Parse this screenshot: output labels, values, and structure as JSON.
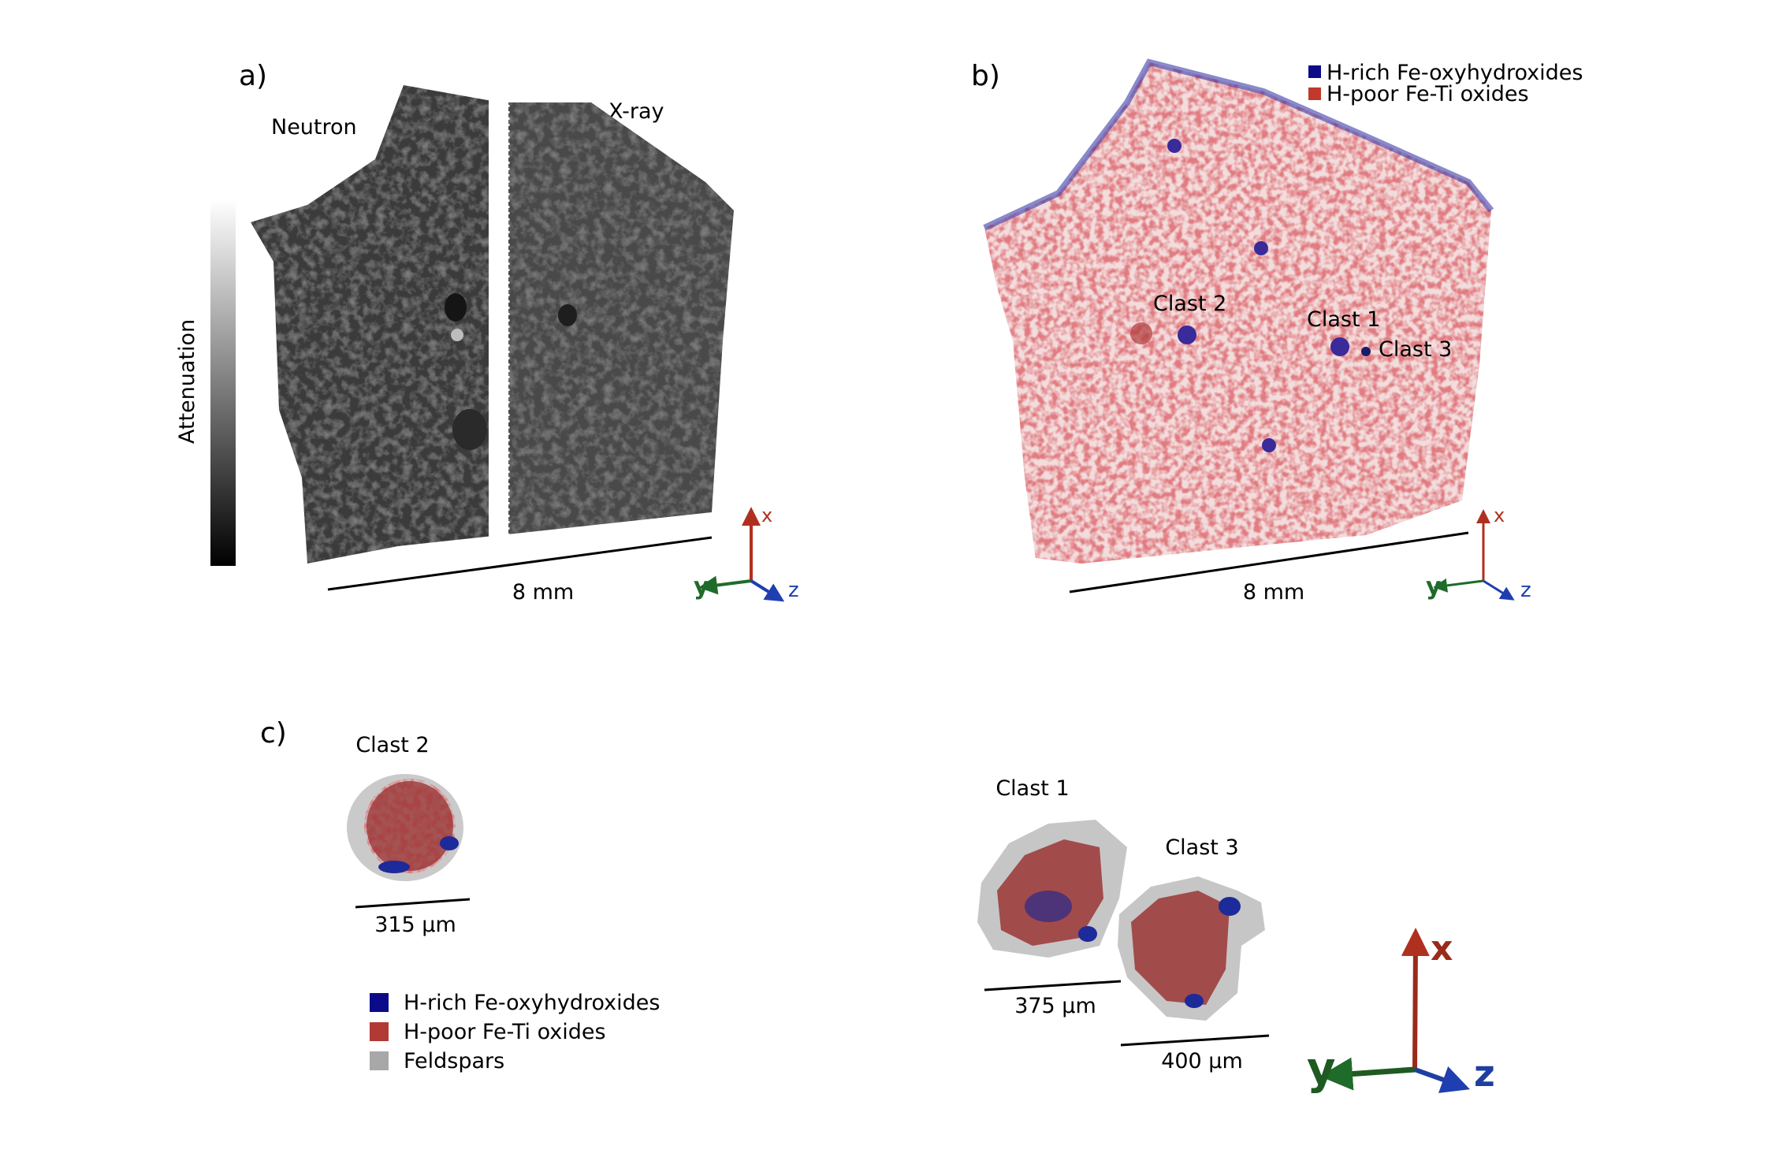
{
  "panel_a": {
    "label": "a)",
    "neutron_label": "Neutron",
    "xray_label": "X-ray",
    "colorbar_label": "Attenuation",
    "scale_label": "8 mm",
    "axes": {
      "x": "x",
      "y": "y",
      "z": "z"
    }
  },
  "panel_b": {
    "label": "b)",
    "legend": [
      {
        "label": "H-rich Fe-oxyhydroxides",
        "color": "#0b0b8a"
      },
      {
        "label": "H-poor Fe-Ti oxides",
        "color": "#c0392b"
      }
    ],
    "clast_labels": [
      "Clast 2",
      "Clast 1",
      "Clast 3"
    ],
    "scale_label": "8 mm",
    "axes": {
      "x": "x",
      "y": "y",
      "z": "z"
    }
  },
  "panel_c": {
    "label": "c)",
    "clasts": [
      {
        "name": "Clast 2",
        "scale": "315 µm"
      },
      {
        "name": "Clast 1",
        "scale": "375 µm"
      },
      {
        "name": "Clast 3",
        "scale": "400 µm"
      }
    ],
    "legend": [
      {
        "label": "H-rich Fe-oxyhydroxides",
        "color": "#0b0b8a"
      },
      {
        "label": "H-poor Fe-Ti oxides",
        "color": "#b23a35"
      },
      {
        "label": "Feldspars",
        "color": "#a8a8a8"
      }
    ],
    "axes": {
      "x": "x",
      "y": "y",
      "z": "z"
    }
  },
  "colors": {
    "axis_x": "#b0301f",
    "axis_y": "#1f6b2a",
    "axis_z": "#1f3fb0"
  }
}
